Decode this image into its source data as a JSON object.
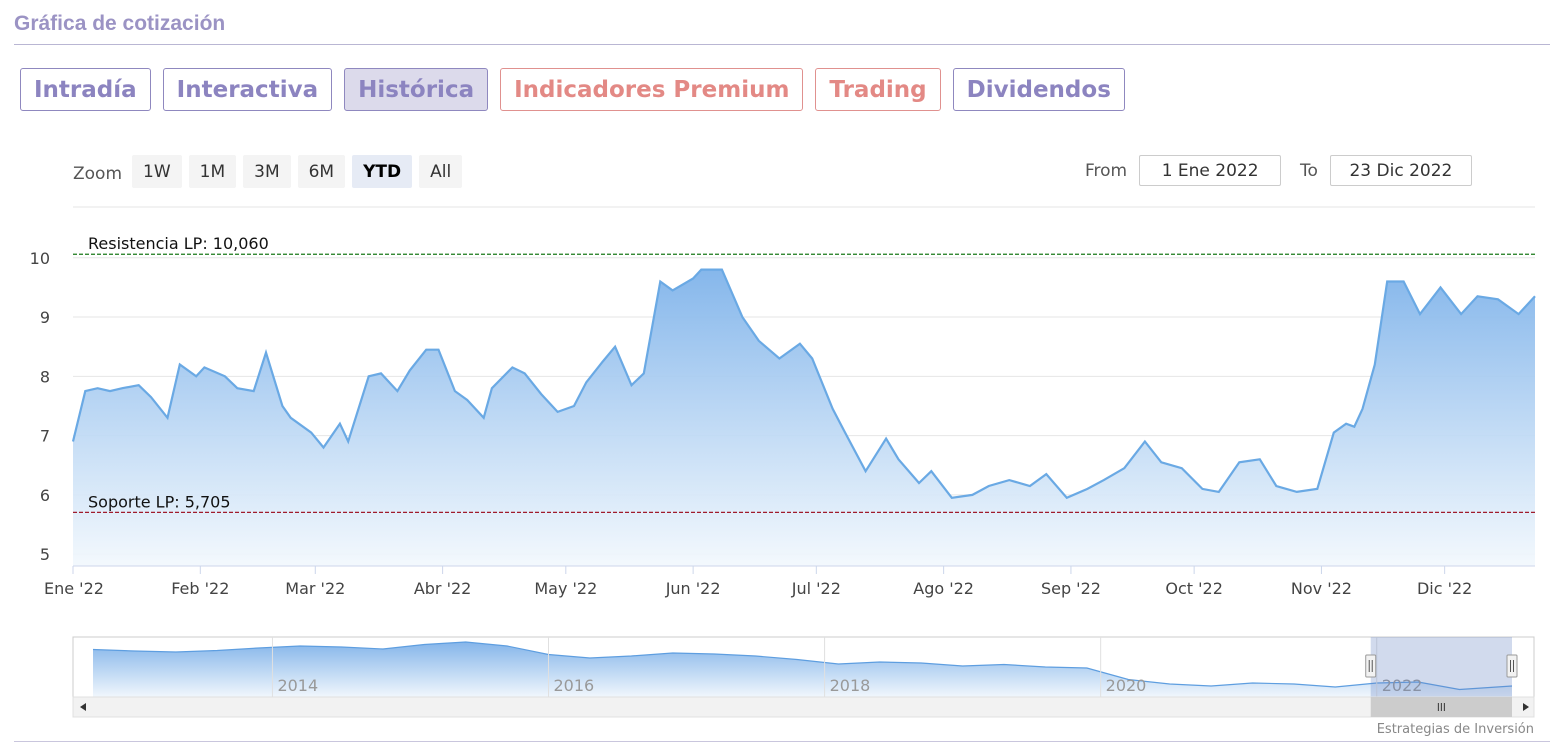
{
  "section_title": "Gráfica de cotización",
  "tabs": [
    {
      "label": "Intradía",
      "kind": "normal"
    },
    {
      "label": "Interactiva",
      "kind": "normal"
    },
    {
      "label": "Histórica",
      "kind": "active"
    },
    {
      "label": "Indicadores Premium",
      "kind": "premium"
    },
    {
      "label": "Trading",
      "kind": "premium"
    },
    {
      "label": "Dividendos",
      "kind": "normal"
    }
  ],
  "zoom": {
    "label": "Zoom",
    "buttons": [
      "1W",
      "1M",
      "3M",
      "6M",
      "YTD",
      "All"
    ],
    "active": "YTD"
  },
  "range": {
    "from_label": "From",
    "from_value": "1 Ene 2022",
    "to_label": "To",
    "to_value": "23 Dic 2022"
  },
  "credits": "Estrategias de Inversión",
  "colors": {
    "line": "#6aa9e4",
    "area_top": "#7fb3ea",
    "area_bottom": "#f2f8fd",
    "resistance": "#1a7a1a",
    "support": "#a01c2c",
    "accent": "#8c84c0",
    "premium": "#e38985"
  },
  "chart_data": {
    "type": "area",
    "title": "",
    "xlabel": "",
    "ylabel": "",
    "ylim": [
      4.8,
      10.3
    ],
    "y_ticks": [
      5,
      6,
      7,
      8,
      9,
      10
    ],
    "x_range": [
      "2022-01-01",
      "2022-12-23"
    ],
    "x_ticks": [
      {
        "date": "2022-01-01",
        "label": "Ene '22"
      },
      {
        "date": "2022-02-01",
        "label": "Feb '22"
      },
      {
        "date": "2022-03-01",
        "label": "Mar '22"
      },
      {
        "date": "2022-04-01",
        "label": "Abr '22"
      },
      {
        "date": "2022-05-01",
        "label": "May '22"
      },
      {
        "date": "2022-06-01",
        "label": "Jun '22"
      },
      {
        "date": "2022-07-01",
        "label": "Jul '22"
      },
      {
        "date": "2022-08-01",
        "label": "Ago '22"
      },
      {
        "date": "2022-09-01",
        "label": "Sep '22"
      },
      {
        "date": "2022-10-01",
        "label": "Oct '22"
      },
      {
        "date": "2022-11-01",
        "label": "Nov '22"
      },
      {
        "date": "2022-12-01",
        "label": "Dic '22"
      }
    ],
    "plot_lines": [
      {
        "label": "Resistencia LP: 10,060",
        "value": 10.06,
        "style": "dashed",
        "color": "#1a7a1a"
      },
      {
        "label": "Soporte LP: 5,705",
        "value": 5.705,
        "style": "dashed",
        "color": "#a01c2c"
      }
    ],
    "series": [
      {
        "x": [
          "2022-01-01",
          "2022-01-04",
          "2022-01-07",
          "2022-01-10",
          "2022-01-13",
          "2022-01-17",
          "2022-01-20",
          "2022-01-24",
          "2022-01-27",
          "2022-01-31",
          "2022-02-02",
          "2022-02-07",
          "2022-02-10",
          "2022-02-14",
          "2022-02-17",
          "2022-02-21",
          "2022-02-23",
          "2022-02-28",
          "2022-03-03",
          "2022-03-07",
          "2022-03-09",
          "2022-03-14",
          "2022-03-17",
          "2022-03-21",
          "2022-03-24",
          "2022-03-28",
          "2022-03-31",
          "2022-04-04",
          "2022-04-07",
          "2022-04-11",
          "2022-04-13",
          "2022-04-18",
          "2022-04-21",
          "2022-04-25",
          "2022-04-29",
          "2022-05-03",
          "2022-05-06",
          "2022-05-10",
          "2022-05-13",
          "2022-05-17",
          "2022-05-20",
          "2022-05-24",
          "2022-05-27",
          "2022-06-01",
          "2022-06-03",
          "2022-06-08",
          "2022-06-13",
          "2022-06-17",
          "2022-06-22",
          "2022-06-27",
          "2022-06-30",
          "2022-07-05",
          "2022-07-08",
          "2022-07-13",
          "2022-07-18",
          "2022-07-21",
          "2022-07-26",
          "2022-07-29",
          "2022-08-03",
          "2022-08-08",
          "2022-08-12",
          "2022-08-17",
          "2022-08-22",
          "2022-08-26",
          "2022-08-31",
          "2022-09-05",
          "2022-09-09",
          "2022-09-14",
          "2022-09-19",
          "2022-09-23",
          "2022-09-28",
          "2022-10-03",
          "2022-10-07",
          "2022-10-12",
          "2022-10-17",
          "2022-10-21",
          "2022-10-26",
          "2022-10-31",
          "2022-11-04",
          "2022-11-07",
          "2022-11-09",
          "2022-11-11",
          "2022-11-14",
          "2022-11-17",
          "2022-11-21",
          "2022-11-25",
          "2022-11-30",
          "2022-12-05",
          "2022-12-09",
          "2022-12-14",
          "2022-12-19",
          "2022-12-23"
        ],
        "y": [
          6.9,
          7.75,
          7.8,
          7.75,
          7.8,
          7.85,
          7.65,
          7.3,
          8.2,
          8.0,
          8.15,
          8.0,
          7.8,
          7.75,
          8.4,
          7.5,
          7.3,
          7.05,
          6.8,
          7.2,
          6.9,
          8.0,
          8.05,
          7.75,
          8.1,
          8.45,
          8.45,
          7.75,
          7.6,
          7.3,
          7.8,
          8.15,
          8.05,
          7.7,
          7.4,
          7.5,
          7.9,
          8.25,
          8.5,
          7.85,
          8.05,
          9.6,
          9.45,
          9.65,
          9.8,
          9.8,
          9.0,
          8.6,
          8.3,
          8.55,
          8.3,
          7.45,
          7.05,
          6.4,
          6.95,
          6.6,
          6.2,
          6.4,
          5.95,
          6.0,
          6.15,
          6.25,
          6.15,
          6.35,
          5.95,
          6.1,
          6.25,
          6.45,
          6.9,
          6.55,
          6.45,
          6.1,
          6.05,
          6.55,
          6.6,
          6.15,
          6.05,
          6.1,
          7.05,
          7.2,
          7.15,
          7.45,
          8.2,
          9.6,
          9.6,
          9.05,
          9.5,
          9.05,
          9.35,
          9.3,
          9.05,
          9.35
        ]
      }
    ],
    "navigator": {
      "type": "area",
      "x_labels": [
        "2014",
        "2016",
        "2018",
        "2020",
        "2022"
      ],
      "x_range": [
        2012.7,
        2022.98
      ],
      "series_x": [
        2012.7,
        2013.0,
        2013.3,
        2013.6,
        2013.9,
        2014.2,
        2014.5,
        2014.8,
        2015.1,
        2015.4,
        2015.7,
        2016.0,
        2016.3,
        2016.6,
        2016.9,
        2017.2,
        2017.5,
        2017.8,
        2018.1,
        2018.4,
        2018.7,
        2019.0,
        2019.3,
        2019.6,
        2019.9,
        2020.2,
        2020.5,
        2020.8,
        2021.1,
        2021.4,
        2021.7,
        2022.0,
        2022.3,
        2022.6,
        2022.98
      ],
      "series_y": [
        14.5,
        14.2,
        14.0,
        14.3,
        14.8,
        15.2,
        15.0,
        14.6,
        15.5,
        16.0,
        15.2,
        13.5,
        12.8,
        13.2,
        13.8,
        13.6,
        13.2,
        12.5,
        11.6,
        12.0,
        11.8,
        11.2,
        11.5,
        11.0,
        10.8,
        8.5,
        7.6,
        7.2,
        7.8,
        7.6,
        7.0,
        7.8,
        8.0,
        6.5,
        7.2
      ],
      "ylim": [
        5,
        17
      ],
      "selected_range": [
        2022.0,
        2022.98
      ]
    }
  }
}
